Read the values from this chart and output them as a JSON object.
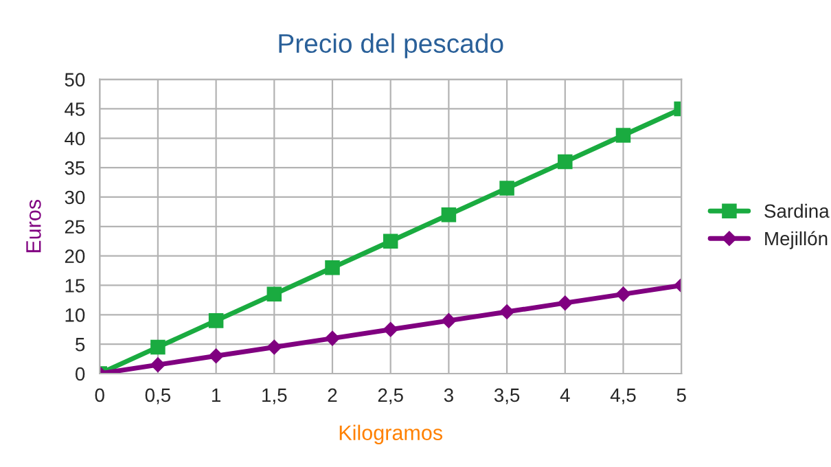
{
  "chart_data": {
    "type": "line",
    "title": "Precio del pescado",
    "xlabel": "Kilogramos",
    "ylabel": "Euros",
    "x": [
      0,
      0.5,
      1,
      1.5,
      2,
      2.5,
      3,
      3.5,
      4,
      4.5,
      5
    ],
    "series": [
      {
        "name": "Sardina",
        "color": "#1aab40",
        "marker": "square",
        "values": [
          0,
          4.5,
          9,
          13.5,
          18,
          22.5,
          27,
          31.5,
          36,
          40.5,
          45
        ]
      },
      {
        "name": "Mejillón",
        "color": "#800080",
        "marker": "diamond",
        "values": [
          0,
          1.5,
          3,
          4.5,
          6,
          7.5,
          9,
          10.5,
          12,
          13.5,
          15
        ]
      }
    ],
    "xlim": [
      0,
      5
    ],
    "xticks": [
      0,
      {
        "value": 0.5,
        "label": "0,5"
      },
      1,
      {
        "value": 1.5,
        "label": "1,5"
      },
      2,
      {
        "value": 2.5,
        "label": "2,5"
      },
      3,
      {
        "value": 3.5,
        "label": "3,5"
      },
      4,
      {
        "value": 4.5,
        "label": "4,5"
      },
      5
    ],
    "ylim": [
      0,
      50
    ],
    "yticks": [
      0,
      5,
      10,
      15,
      20,
      25,
      30,
      35,
      40,
      45,
      50
    ],
    "grid": true,
    "legend": "right",
    "line_style": "solid"
  }
}
